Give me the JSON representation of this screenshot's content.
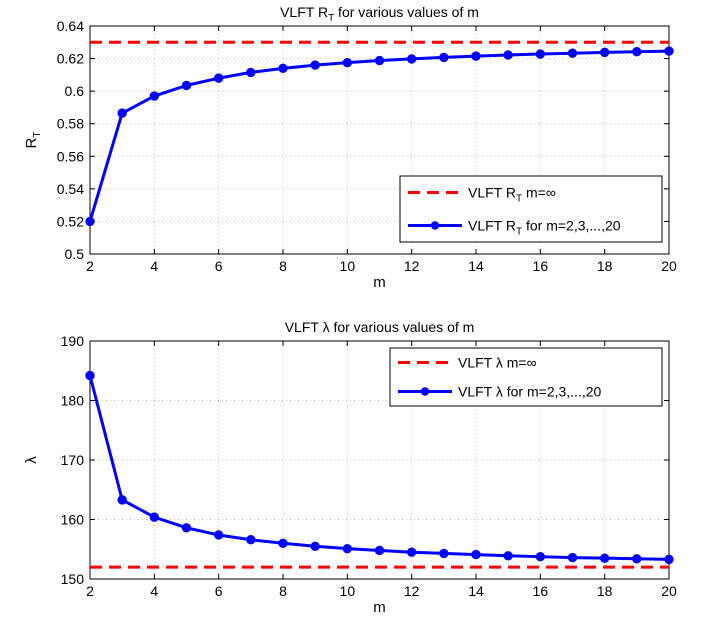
{
  "chart_data": [
    {
      "type": "line",
      "title": "VLFT R",
      "title_sub": "T",
      "title_rest": " for various values of m",
      "xlabel": "m",
      "ylabel": "R",
      "ylabel_sub": "T",
      "xlim": [
        2,
        20
      ],
      "ylim": [
        0.5,
        0.64
      ],
      "xticks": [
        2,
        4,
        6,
        8,
        10,
        12,
        14,
        16,
        18,
        20
      ],
      "yticks": [
        0.5,
        0.52,
        0.54,
        0.56,
        0.58,
        0.6,
        0.62,
        0.64
      ],
      "ytick_labels": [
        "0.5",
        "0.52",
        "0.54",
        "0.56",
        "0.58",
        "0.6",
        "0.62",
        "0.64"
      ],
      "grid": true,
      "legend_position": "lower-right",
      "series": [
        {
          "name": "VLFT R",
          "name_sub": "T",
          "name_rest": " m=∞",
          "style": "dashed",
          "color": "#ff0000",
          "x": [
            2,
            20
          ],
          "y": [
            0.63,
            0.63
          ]
        },
        {
          "name": "VLFT R",
          "name_sub": "T",
          "name_rest": " for m=2,3,...,20",
          "style": "solid-marker",
          "color": "#0000ff",
          "x": [
            2,
            3,
            4,
            5,
            6,
            7,
            8,
            9,
            10,
            11,
            12,
            13,
            14,
            15,
            16,
            17,
            18,
            19,
            20
          ],
          "y": [
            0.52,
            0.5865,
            0.597,
            0.6035,
            0.608,
            0.6115,
            0.614,
            0.616,
            0.6175,
            0.6188,
            0.6198,
            0.6207,
            0.6215,
            0.6222,
            0.6228,
            0.6233,
            0.6238,
            0.6242,
            0.6246
          ]
        }
      ]
    },
    {
      "type": "line",
      "title": "VLFT λ for various values of m",
      "xlabel": "m",
      "ylabel": "λ",
      "xlim": [
        2,
        20
      ],
      "ylim": [
        150,
        190
      ],
      "xticks": [
        2,
        4,
        6,
        8,
        10,
        12,
        14,
        16,
        18,
        20
      ],
      "yticks": [
        150,
        160,
        170,
        180,
        190
      ],
      "ytick_labels": [
        "150",
        "160",
        "170",
        "180",
        "190"
      ],
      "grid": true,
      "legend_position": "top-right",
      "series": [
        {
          "name": "VLFT λ m=∞",
          "style": "dashed",
          "color": "#ff0000",
          "x": [
            2,
            20
          ],
          "y": [
            152,
            152
          ]
        },
        {
          "name": "VLFT λ for m=2,3,...,20",
          "style": "solid-marker",
          "color": "#0000ff",
          "x": [
            2,
            3,
            4,
            5,
            6,
            7,
            8,
            9,
            10,
            11,
            12,
            13,
            14,
            15,
            16,
            17,
            18,
            19,
            20
          ],
          "y": [
            184.2,
            163.3,
            160.4,
            158.6,
            157.4,
            156.6,
            156.0,
            155.5,
            155.1,
            154.8,
            154.5,
            154.3,
            154.1,
            153.9,
            153.75,
            153.6,
            153.5,
            153.4,
            153.3
          ]
        }
      ]
    }
  ]
}
